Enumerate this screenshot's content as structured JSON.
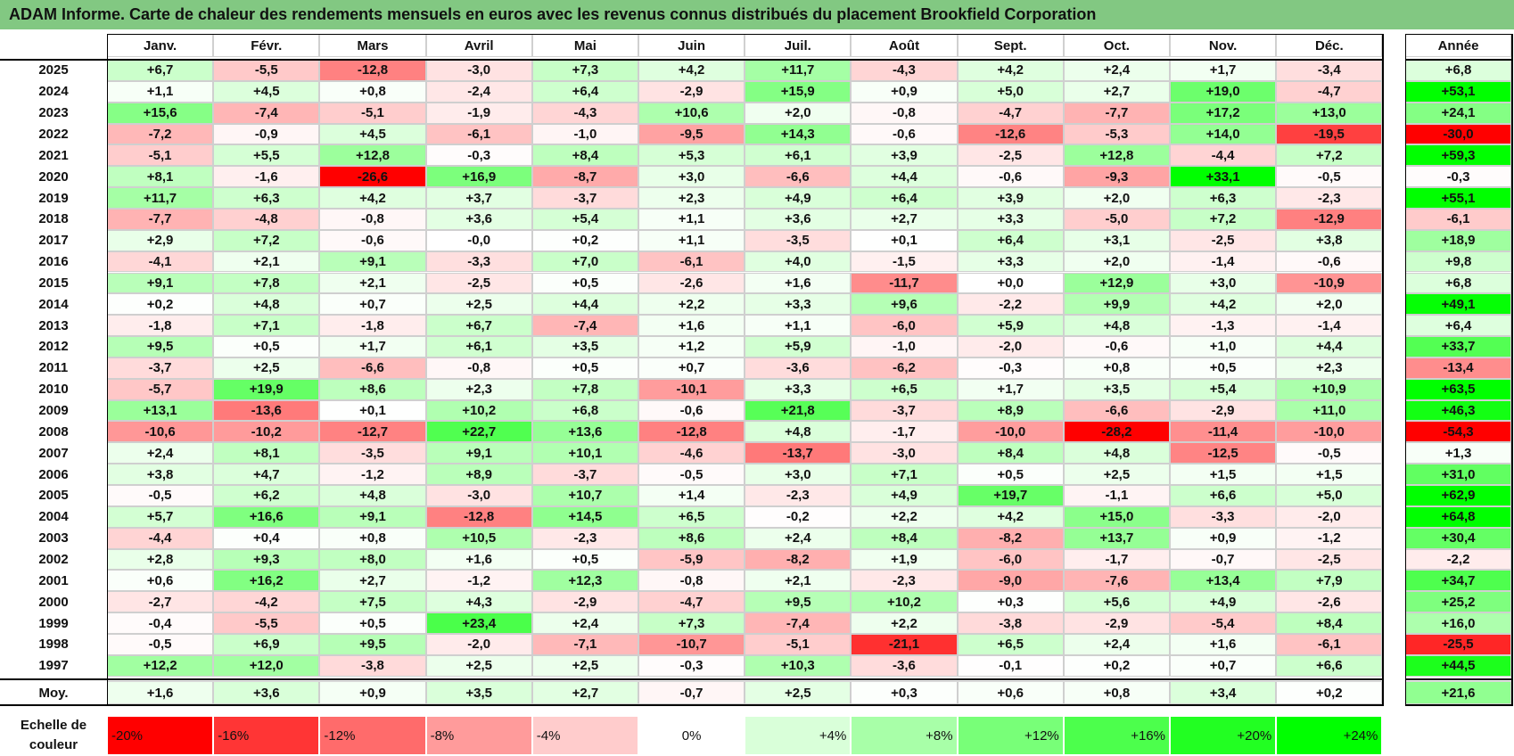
{
  "title": "ADAM Informe. Carte de chaleur des rendements mensuels en euros avec les revenus connus distribués du placement Brookfield Corporation",
  "chart_data": {
    "type": "heatmap",
    "columns": [
      "Janv.",
      "Févr.",
      "Mars",
      "Avril",
      "Mai",
      "Juin",
      "Juil.",
      "Août",
      "Sept.",
      "Oct.",
      "Nov.",
      "Déc."
    ],
    "annual_header": "Année",
    "rows": [
      {
        "year": "2025",
        "values": [
          "+6,7",
          "-5,5",
          "-12,8",
          "-3,0",
          "+7,3",
          "+4,2",
          "+11,7",
          "-4,3",
          "+4,2",
          "+2,4",
          "+1,7",
          "-3,4"
        ],
        "annual": "+6,8"
      },
      {
        "year": "2024",
        "values": [
          "+1,1",
          "+4,5",
          "+0,8",
          "-2,4",
          "+6,4",
          "-2,9",
          "+15,9",
          "+0,9",
          "+5,0",
          "+2,7",
          "+19,0",
          "-4,7"
        ],
        "annual": "+53,1"
      },
      {
        "year": "2023",
        "values": [
          "+15,6",
          "-7,4",
          "-5,1",
          "-1,9",
          "-4,3",
          "+10,6",
          "+2,0",
          "-0,8",
          "-4,7",
          "-7,7",
          "+17,2",
          "+13,0"
        ],
        "annual": "+24,1"
      },
      {
        "year": "2022",
        "values": [
          "-7,2",
          "-0,9",
          "+4,5",
          "-6,1",
          "-1,0",
          "-9,5",
          "+14,3",
          "-0,6",
          "-12,6",
          "-5,3",
          "+14,0",
          "-19,5"
        ],
        "annual": "-30,0"
      },
      {
        "year": "2021",
        "values": [
          "-5,1",
          "+5,5",
          "+12,8",
          "-0,3",
          "+8,4",
          "+5,3",
          "+6,1",
          "+3,9",
          "-2,5",
          "+12,8",
          "-4,4",
          "+7,2"
        ],
        "annual": "+59,3"
      },
      {
        "year": "2020",
        "values": [
          "+8,1",
          "-1,6",
          "-26,6",
          "+16,9",
          "-8,7",
          "+3,0",
          "-6,6",
          "+4,4",
          "-0,6",
          "-9,3",
          "+33,1",
          "-0,5"
        ],
        "annual": "-0,3"
      },
      {
        "year": "2019",
        "values": [
          "+11,7",
          "+6,3",
          "+4,2",
          "+3,7",
          "-3,7",
          "+2,3",
          "+4,9",
          "+6,4",
          "+3,9",
          "+2,0",
          "+6,3",
          "-2,3"
        ],
        "annual": "+55,1"
      },
      {
        "year": "2018",
        "values": [
          "-7,7",
          "-4,8",
          "-0,8",
          "+3,6",
          "+5,4",
          "+1,1",
          "+3,6",
          "+2,7",
          "+3,3",
          "-5,0",
          "+7,2",
          "-12,9"
        ],
        "annual": "-6,1"
      },
      {
        "year": "2017",
        "values": [
          "+2,9",
          "+7,2",
          "-0,6",
          "-0,0",
          "+0,2",
          "+1,1",
          "-3,5",
          "+0,1",
          "+6,4",
          "+3,1",
          "-2,5",
          "+3,8"
        ],
        "annual": "+18,9"
      },
      {
        "year": "2016",
        "values": [
          "-4,1",
          "+2,1",
          "+9,1",
          "-3,3",
          "+7,0",
          "-6,1",
          "+4,0",
          "-1,5",
          "+3,3",
          "+2,0",
          "-1,4",
          "-0,6"
        ],
        "annual": "+9,8"
      },
      {
        "year": "2015",
        "values": [
          "+9,1",
          "+7,8",
          "+2,1",
          "-2,5",
          "+0,5",
          "-2,6",
          "+1,6",
          "-11,7",
          "+0,0",
          "+12,9",
          "+3,0",
          "-10,9"
        ],
        "annual": "+6,8"
      },
      {
        "year": "2014",
        "values": [
          "+0,2",
          "+4,8",
          "+0,7",
          "+2,5",
          "+4,4",
          "+2,2",
          "+3,3",
          "+9,6",
          "-2,2",
          "+9,9",
          "+4,2",
          "+2,0"
        ],
        "annual": "+49,1"
      },
      {
        "year": "2013",
        "values": [
          "-1,8",
          "+7,1",
          "-1,8",
          "+6,7",
          "-7,4",
          "+1,6",
          "+1,1",
          "-6,0",
          "+5,9",
          "+4,8",
          "-1,3",
          "-1,4"
        ],
        "annual": "+6,4"
      },
      {
        "year": "2012",
        "values": [
          "+9,5",
          "+0,5",
          "+1,7",
          "+6,1",
          "+3,5",
          "+1,2",
          "+5,9",
          "-1,0",
          "-2,0",
          "-0,6",
          "+1,0",
          "+4,4"
        ],
        "annual": "+33,7"
      },
      {
        "year": "2011",
        "values": [
          "-3,7",
          "+2,5",
          "-6,6",
          "-0,8",
          "+0,5",
          "+0,7",
          "-3,6",
          "-6,2",
          "-0,3",
          "+0,8",
          "+0,5",
          "+2,3"
        ],
        "annual": "-13,4"
      },
      {
        "year": "2010",
        "values": [
          "-5,7",
          "+19,9",
          "+8,6",
          "+2,3",
          "+7,8",
          "-10,1",
          "+3,3",
          "+6,5",
          "+1,7",
          "+3,5",
          "+5,4",
          "+10,9"
        ],
        "annual": "+63,5"
      },
      {
        "year": "2009",
        "values": [
          "+13,1",
          "-13,6",
          "+0,1",
          "+10,2",
          "+6,8",
          "-0,6",
          "+21,8",
          "-3,7",
          "+8,9",
          "-6,6",
          "-2,9",
          "+11,0"
        ],
        "annual": "+46,3"
      },
      {
        "year": "2008",
        "values": [
          "-10,6",
          "-10,2",
          "-12,7",
          "+22,7",
          "+13,6",
          "-12,8",
          "+4,8",
          "-1,7",
          "-10,0",
          "-28,2",
          "-11,4",
          "-10,0"
        ],
        "annual": "-54,3"
      },
      {
        "year": "2007",
        "values": [
          "+2,4",
          "+8,1",
          "-3,5",
          "+9,1",
          "+10,1",
          "-4,6",
          "-13,7",
          "-3,0",
          "+8,4",
          "+4,8",
          "-12,5",
          "-0,5"
        ],
        "annual": "+1,3"
      },
      {
        "year": "2006",
        "values": [
          "+3,8",
          "+4,7",
          "-1,2",
          "+8,9",
          "-3,7",
          "-0,5",
          "+3,0",
          "+7,1",
          "+0,5",
          "+2,5",
          "+1,5",
          "+1,5"
        ],
        "annual": "+31,0"
      },
      {
        "year": "2005",
        "values": [
          "-0,5",
          "+6,2",
          "+4,8",
          "-3,0",
          "+10,7",
          "+1,4",
          "-2,3",
          "+4,9",
          "+19,7",
          "-1,1",
          "+6,6",
          "+5,0"
        ],
        "annual": "+62,9"
      },
      {
        "year": "2004",
        "values": [
          "+5,7",
          "+16,6",
          "+9,1",
          "-12,8",
          "+14,5",
          "+6,5",
          "-0,2",
          "+2,2",
          "+4,2",
          "+15,0",
          "-3,3",
          "-2,0"
        ],
        "annual": "+64,8"
      },
      {
        "year": "2003",
        "values": [
          "-4,4",
          "+0,4",
          "+0,8",
          "+10,5",
          "-2,3",
          "+8,6",
          "+2,4",
          "+8,4",
          "-8,2",
          "+13,7",
          "+0,9",
          "-1,2"
        ],
        "annual": "+30,4"
      },
      {
        "year": "2002",
        "values": [
          "+2,8",
          "+9,3",
          "+8,0",
          "+1,6",
          "+0,5",
          "-5,9",
          "-8,2",
          "+1,9",
          "-6,0",
          "-1,7",
          "-0,7",
          "-2,5"
        ],
        "annual": "-2,2"
      },
      {
        "year": "2001",
        "values": [
          "+0,6",
          "+16,2",
          "+2,7",
          "-1,2",
          "+12,3",
          "-0,8",
          "+2,1",
          "-2,3",
          "-9,0",
          "-7,6",
          "+13,4",
          "+7,9"
        ],
        "annual": "+34,7"
      },
      {
        "year": "2000",
        "values": [
          "-2,7",
          "-4,2",
          "+7,5",
          "+4,3",
          "-2,9",
          "-4,7",
          "+9,5",
          "+10,2",
          "+0,3",
          "+5,6",
          "+4,9",
          "-2,6"
        ],
        "annual": "+25,2"
      },
      {
        "year": "1999",
        "values": [
          "-0,4",
          "-5,5",
          "+0,5",
          "+23,4",
          "+2,4",
          "+7,3",
          "-7,4",
          "+2,2",
          "-3,8",
          "-2,9",
          "-5,4",
          "+8,4"
        ],
        "annual": "+16,0"
      },
      {
        "year": "1998",
        "values": [
          "-0,5",
          "+6,9",
          "+9,5",
          "-2,0",
          "-7,1",
          "-10,7",
          "-5,1",
          "-21,1",
          "+6,5",
          "+2,4",
          "+1,6",
          "-6,1"
        ],
        "annual": "-25,5"
      },
      {
        "year": "1997",
        "values": [
          "+12,2",
          "+12,0",
          "-3,8",
          "+2,5",
          "+2,5",
          "-0,3",
          "+10,3",
          "-3,6",
          "-0,1",
          "+0,2",
          "+0,7",
          "+6,6"
        ],
        "annual": "+44,5"
      }
    ],
    "average": {
      "label": "Moy.",
      "values": [
        "+1,6",
        "+3,6",
        "+0,9",
        "+3,5",
        "+2,7",
        "-0,7",
        "+2,5",
        "+0,3",
        "+0,6",
        "+0,8",
        "+3,4",
        "+0,2"
      ],
      "annual": "+21,6"
    },
    "color_scale": {
      "label": "Echelle de couleur",
      "stops": [
        "-20%",
        "-16%",
        "-12%",
        "-8%",
        "-4%",
        "0%",
        "+4%",
        "+8%",
        "+12%",
        "+16%",
        "+20%",
        "+24%"
      ],
      "colors": [
        "#ff0000",
        "#ff3535",
        "#ff6b6b",
        "#ff9b9b",
        "#ffcccc",
        "#ffffff",
        "#d9ffd9",
        "#a8ffa8",
        "#78ff78",
        "#4cff4c",
        "#22ff22",
        "#00ff00"
      ]
    }
  }
}
